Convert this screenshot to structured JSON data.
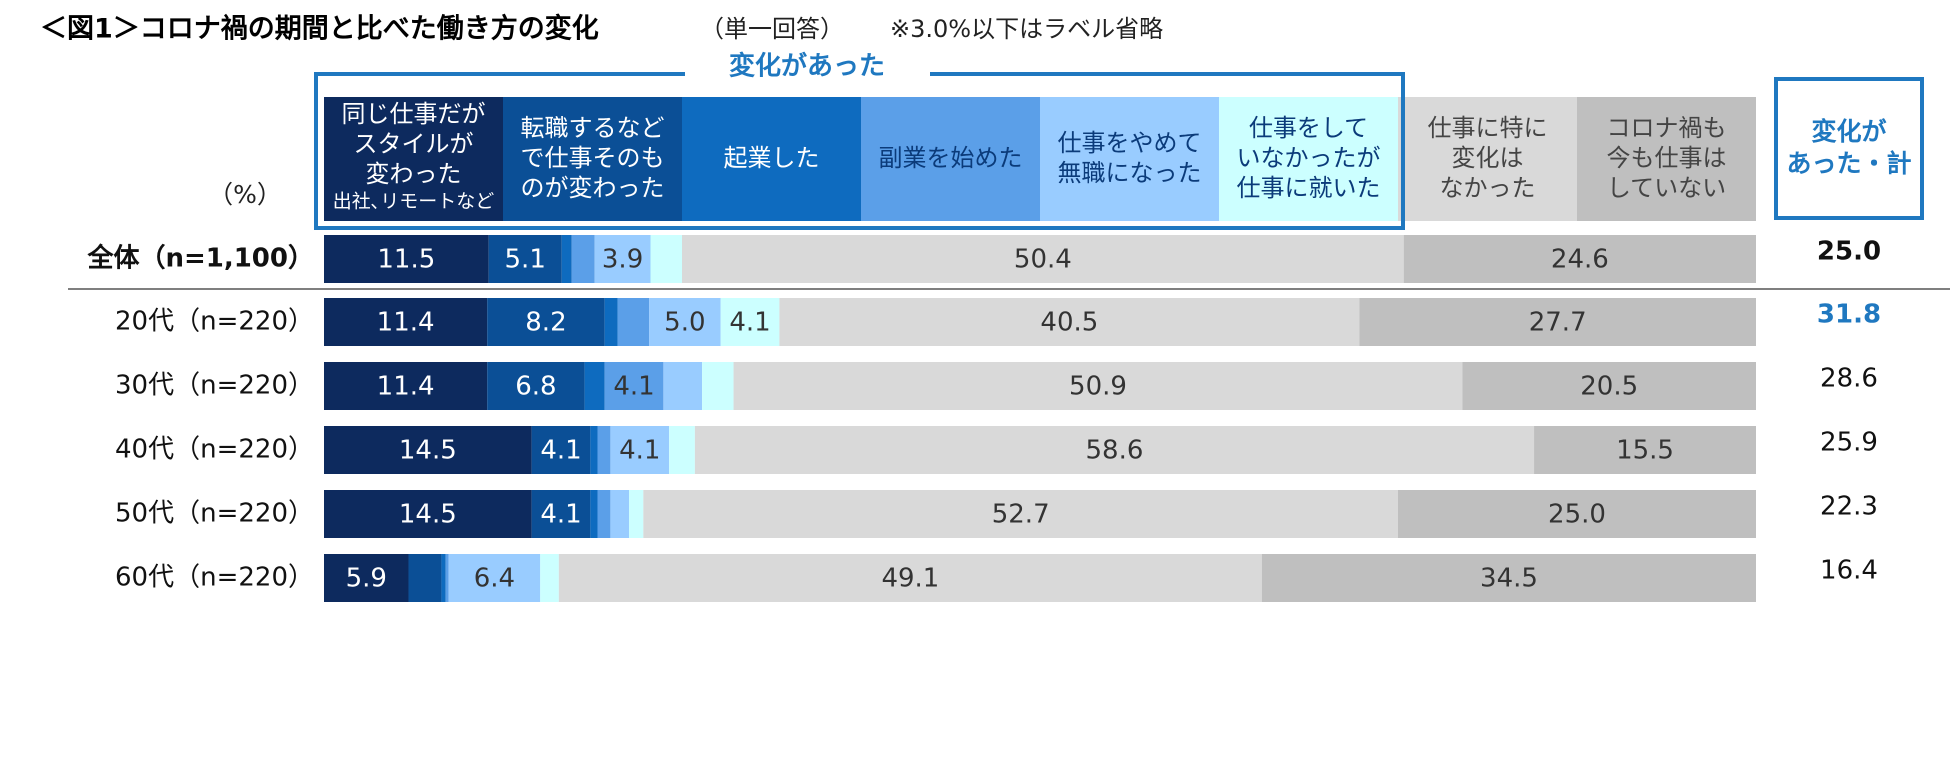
{
  "chart_data": {
    "type": "stacked-bar-horizontal",
    "title": "＜図1＞コロナ禍の期間と比べた働き方の変化",
    "subtitle": "（単一回答）",
    "note": "※3.0%以下はラベル省略",
    "unit": "（%）",
    "group_label": "変化があった",
    "categories": [
      "全体（n=1,100）",
      "20代（n=220）",
      "30代（n=220）",
      "40代（n=220）",
      "50代（n=220）",
      "60代（n=220）"
    ],
    "xlim": [
      0,
      100
    ],
    "series": [
      {
        "name": "同じ仕事だが\nスタイルが\n変わった",
        "note": "出社､リモートなど",
        "color": "#0d2a5e",
        "values": [
          11.5,
          11.4,
          11.4,
          14.5,
          14.5,
          5.9
        ],
        "value_labels": [
          "11.5",
          "11.4",
          "11.4",
          "14.5",
          "14.5",
          "5.9"
        ]
      },
      {
        "name": "転職するなど\nで仕事そのも\nのが変わった",
        "color": "#0b4f96",
        "values": [
          5.1,
          8.2,
          6.8,
          4.1,
          4.1,
          2.3
        ],
        "value_labels": [
          "5.1",
          "8.2",
          "6.8",
          "4.1",
          "4.1",
          null
        ]
      },
      {
        "name": "起業した",
        "color": "#0e6bbf",
        "values": [
          0.7,
          0.9,
          1.4,
          0.5,
          0.5,
          0.3
        ],
        "value_labels": [
          null,
          null,
          null,
          null,
          null,
          null
        ]
      },
      {
        "name": "副業を始めた",
        "color": "#5b9fe8",
        "values": [
          1.6,
          2.2,
          4.1,
          0.9,
          0.9,
          0.2
        ],
        "value_labels": [
          null,
          null,
          "4.1",
          null,
          null,
          null
        ]
      },
      {
        "name": "仕事をやめて\n無職になった",
        "color": "#99ccff",
        "values": [
          3.9,
          5.0,
          2.7,
          4.1,
          1.3,
          6.4
        ],
        "value_labels": [
          "3.9",
          "5.0",
          null,
          "4.1",
          null,
          "6.4"
        ]
      },
      {
        "name": "仕事をして\nいなかったが\n仕事に就いた",
        "color": "#ccffff",
        "values": [
          2.2,
          4.1,
          2.2,
          1.8,
          1.0,
          1.3
        ],
        "value_labels": [
          null,
          "4.1",
          null,
          null,
          null,
          null
        ]
      },
      {
        "name": "仕事に特に\n変化は\nなかった",
        "color": "#d9d9d9",
        "values": [
          50.4,
          40.5,
          50.9,
          58.6,
          52.7,
          49.1
        ],
        "value_labels": [
          "50.4",
          "40.5",
          "50.9",
          "58.6",
          "52.7",
          "49.1"
        ]
      },
      {
        "name": "コロナ禍も\n今も仕事は\nしていない",
        "color": "#bfbfbf",
        "values": [
          24.6,
          27.7,
          20.5,
          15.5,
          25.0,
          34.5
        ],
        "value_labels": [
          "24.6",
          "27.7",
          "20.5",
          "15.5",
          "25.0",
          "34.5"
        ]
      }
    ],
    "totals": {
      "name": "変化が\nあった・計",
      "values": [
        25.0,
        31.8,
        28.6,
        25.9,
        22.3,
        16.4
      ],
      "value_labels": [
        "25.0",
        "31.8",
        "28.6",
        "25.9",
        "22.3",
        "16.4"
      ]
    }
  }
}
